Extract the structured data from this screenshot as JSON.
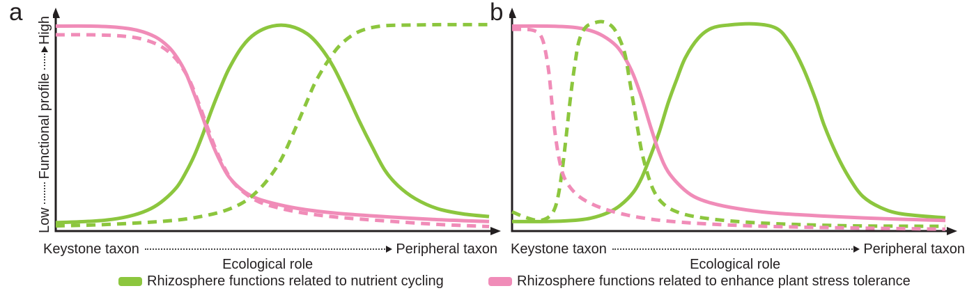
{
  "panel_labels": {
    "a": "a",
    "b": "b"
  },
  "y_axis": {
    "low": "Low",
    "label": "Functional profile",
    "high": "High"
  },
  "x_axis": {
    "left": "Keystone taxon",
    "center": "Ecological role",
    "right": "Peripheral taxon"
  },
  "colors": {
    "green": "#8cc63e",
    "pink": "#f08cb8",
    "axis": "#231f20"
  },
  "legend": [
    {
      "label": "Rhizosphere functions related to nutrient cycling",
      "color": "#8cc63e"
    },
    {
      "label": "Rhizosphere functions related to enhance plant stress tolerance",
      "color": "#f08cb8"
    }
  ],
  "chart_data": [
    {
      "panel": "a",
      "type": "line",
      "title": "",
      "xlabel": "Ecological role (Keystone taxon to Peripheral taxon)",
      "ylabel": "Functional profile (Low to High)",
      "x_range": [
        0,
        1
      ],
      "y_range": [
        0,
        1
      ],
      "grid": false,
      "series": [
        {
          "name": "Rhizosphere functions related to nutrient cycling",
          "color": "green",
          "line": "solid",
          "points": [
            [
              0,
              0.05
            ],
            [
              0.07,
              0.055
            ],
            [
              0.13,
              0.065
            ],
            [
              0.18,
              0.085
            ],
            [
              0.22,
              0.115
            ],
            [
              0.25,
              0.155
            ],
            [
              0.28,
              0.215
            ],
            [
              0.3,
              0.28
            ],
            [
              0.32,
              0.36
            ],
            [
              0.34,
              0.46
            ],
            [
              0.36,
              0.57
            ],
            [
              0.38,
              0.67
            ],
            [
              0.4,
              0.76
            ],
            [
              0.43,
              0.86
            ],
            [
              0.46,
              0.92
            ],
            [
              0.5,
              0.955
            ],
            [
              0.54,
              0.955
            ],
            [
              0.58,
              0.92
            ],
            [
              0.61,
              0.86
            ],
            [
              0.64,
              0.77
            ],
            [
              0.67,
              0.65
            ],
            [
              0.7,
              0.52
            ],
            [
              0.73,
              0.4
            ],
            [
              0.76,
              0.29
            ],
            [
              0.79,
              0.22
            ],
            [
              0.83,
              0.16
            ],
            [
              0.88,
              0.115
            ],
            [
              0.94,
              0.09
            ],
            [
              1,
              0.078
            ]
          ]
        },
        {
          "name": "Rhizosphere functions related to enhance plant stress tolerance",
          "color": "pink",
          "line": "solid",
          "points": [
            [
              0,
              0.955
            ],
            [
              0.08,
              0.955
            ],
            [
              0.14,
              0.95
            ],
            [
              0.19,
              0.935
            ],
            [
              0.23,
              0.905
            ],
            [
              0.26,
              0.86
            ],
            [
              0.28,
              0.81
            ],
            [
              0.3,
              0.74
            ],
            [
              0.32,
              0.64
            ],
            [
              0.34,
              0.53
            ],
            [
              0.36,
              0.42
            ],
            [
              0.38,
              0.33
            ],
            [
              0.4,
              0.26
            ],
            [
              0.43,
              0.2
            ],
            [
              0.46,
              0.165
            ],
            [
              0.5,
              0.14
            ],
            [
              0.56,
              0.115
            ],
            [
              0.64,
              0.095
            ],
            [
              0.74,
              0.08
            ],
            [
              0.87,
              0.065
            ],
            [
              1,
              0.055
            ]
          ]
        },
        {
          "name": "Rhizosphere functions related to nutrient cycling (dashed)",
          "color": "green",
          "line": "dashed",
          "points": [
            [
              0,
              0.035
            ],
            [
              0.1,
              0.04
            ],
            [
              0.2,
              0.05
            ],
            [
              0.28,
              0.062
            ],
            [
              0.34,
              0.08
            ],
            [
              0.39,
              0.105
            ],
            [
              0.43,
              0.14
            ],
            [
              0.46,
              0.185
            ],
            [
              0.49,
              0.25
            ],
            [
              0.52,
              0.34
            ],
            [
              0.55,
              0.47
            ],
            [
              0.58,
              0.61
            ],
            [
              0.6,
              0.7
            ],
            [
              0.63,
              0.8
            ],
            [
              0.66,
              0.875
            ],
            [
              0.7,
              0.93
            ],
            [
              0.75,
              0.955
            ],
            [
              0.82,
              0.96
            ],
            [
              0.9,
              0.962
            ],
            [
              1,
              0.962
            ]
          ]
        },
        {
          "name": "Rhizosphere functions related to enhance plant stress tolerance (dashed)",
          "color": "pink",
          "line": "dashed",
          "points": [
            [
              0,
              0.915
            ],
            [
              0.08,
              0.915
            ],
            [
              0.15,
              0.91
            ],
            [
              0.2,
              0.895
            ],
            [
              0.24,
              0.865
            ],
            [
              0.27,
              0.82
            ],
            [
              0.29,
              0.77
            ],
            [
              0.31,
              0.7
            ],
            [
              0.33,
              0.6
            ],
            [
              0.35,
              0.49
            ],
            [
              0.37,
              0.385
            ],
            [
              0.39,
              0.3
            ],
            [
              0.41,
              0.235
            ],
            [
              0.44,
              0.18
            ],
            [
              0.47,
              0.145
            ],
            [
              0.51,
              0.12
            ],
            [
              0.57,
              0.095
            ],
            [
              0.65,
              0.075
            ],
            [
              0.76,
              0.058
            ],
            [
              0.88,
              0.042
            ],
            [
              1,
              0.032
            ]
          ]
        }
      ]
    },
    {
      "panel": "b",
      "type": "line",
      "title": "",
      "xlabel": "Ecological role (Keystone taxon to Peripheral taxon)",
      "ylabel": "Functional profile (Low to High)",
      "x_range": [
        0,
        1
      ],
      "y_range": [
        0,
        1
      ],
      "grid": false,
      "series": [
        {
          "name": "Rhizosphere functions related to nutrient cycling",
          "color": "green",
          "line": "solid",
          "points": [
            [
              0,
              0.055
            ],
            [
              0.08,
              0.055
            ],
            [
              0.14,
              0.06
            ],
            [
              0.18,
              0.07
            ],
            [
              0.22,
              0.095
            ],
            [
              0.25,
              0.13
            ],
            [
              0.28,
              0.19
            ],
            [
              0.3,
              0.26
            ],
            [
              0.32,
              0.36
            ],
            [
              0.34,
              0.47
            ],
            [
              0.36,
              0.6
            ],
            [
              0.38,
              0.71
            ],
            [
              0.4,
              0.81
            ],
            [
              0.43,
              0.9
            ],
            [
              0.46,
              0.945
            ],
            [
              0.5,
              0.96
            ],
            [
              0.56,
              0.965
            ],
            [
              0.61,
              0.945
            ],
            [
              0.64,
              0.88
            ],
            [
              0.67,
              0.77
            ],
            [
              0.7,
              0.62
            ],
            [
              0.72,
              0.5
            ],
            [
              0.75,
              0.36
            ],
            [
              0.78,
              0.25
            ],
            [
              0.81,
              0.17
            ],
            [
              0.85,
              0.12
            ],
            [
              0.9,
              0.09
            ],
            [
              1,
              0.072
            ]
          ]
        },
        {
          "name": "Rhizosphere functions related to enhance plant stress tolerance",
          "color": "pink",
          "line": "solid",
          "points": [
            [
              0,
              0.955
            ],
            [
              0.08,
              0.955
            ],
            [
              0.14,
              0.95
            ],
            [
              0.18,
              0.935
            ],
            [
              0.21,
              0.91
            ],
            [
              0.24,
              0.865
            ],
            [
              0.26,
              0.81
            ],
            [
              0.28,
              0.73
            ],
            [
              0.3,
              0.62
            ],
            [
              0.32,
              0.49
            ],
            [
              0.34,
              0.37
            ],
            [
              0.36,
              0.285
            ],
            [
              0.39,
              0.215
            ],
            [
              0.42,
              0.17
            ],
            [
              0.46,
              0.14
            ],
            [
              0.52,
              0.115
            ],
            [
              0.6,
              0.095
            ],
            [
              0.72,
              0.08
            ],
            [
              0.86,
              0.068
            ],
            [
              1,
              0.06
            ]
          ]
        },
        {
          "name": "Rhizosphere functions related to nutrient cycling (dashed)",
          "color": "green",
          "line": "dashed",
          "points": [
            [
              0,
              0.1
            ],
            [
              0.03,
              0.075
            ],
            [
              0.06,
              0.06
            ],
            [
              0.08,
              0.07
            ],
            [
              0.095,
              0.1
            ],
            [
              0.105,
              0.16
            ],
            [
              0.115,
              0.28
            ],
            [
              0.125,
              0.45
            ],
            [
              0.135,
              0.63
            ],
            [
              0.145,
              0.78
            ],
            [
              0.155,
              0.89
            ],
            [
              0.17,
              0.95
            ],
            [
              0.19,
              0.97
            ],
            [
              0.21,
              0.975
            ],
            [
              0.23,
              0.955
            ],
            [
              0.245,
              0.91
            ],
            [
              0.26,
              0.83
            ],
            [
              0.27,
              0.72
            ],
            [
              0.28,
              0.6
            ],
            [
              0.29,
              0.48
            ],
            [
              0.3,
              0.37
            ],
            [
              0.315,
              0.26
            ],
            [
              0.33,
              0.185
            ],
            [
              0.35,
              0.135
            ],
            [
              0.38,
              0.1
            ],
            [
              0.43,
              0.075
            ],
            [
              0.52,
              0.055
            ],
            [
              0.65,
              0.042
            ],
            [
              0.8,
              0.035
            ],
            [
              1,
              0.033
            ]
          ]
        },
        {
          "name": "Rhizosphere functions related to enhance plant stress tolerance (dashed)",
          "color": "pink",
          "line": "dashed",
          "points": [
            [
              0,
              0.94
            ],
            [
              0.03,
              0.94
            ],
            [
              0.05,
              0.935
            ],
            [
              0.065,
              0.915
            ],
            [
              0.075,
              0.86
            ],
            [
              0.085,
              0.74
            ],
            [
              0.092,
              0.6
            ],
            [
              0.1,
              0.45
            ],
            [
              0.11,
              0.33
            ],
            [
              0.12,
              0.26
            ],
            [
              0.135,
              0.21
            ],
            [
              0.155,
              0.17
            ],
            [
              0.18,
              0.14
            ],
            [
              0.21,
              0.115
            ],
            [
              0.25,
              0.092
            ],
            [
              0.3,
              0.072
            ],
            [
              0.37,
              0.055
            ],
            [
              0.47,
              0.042
            ],
            [
              0.6,
              0.032
            ],
            [
              0.8,
              0.025
            ],
            [
              1,
              0.02
            ]
          ]
        }
      ]
    }
  ]
}
